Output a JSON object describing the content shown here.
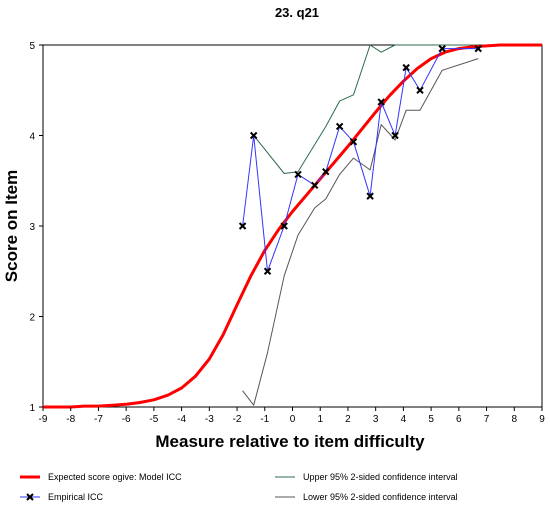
{
  "chart_data": {
    "type": "line",
    "title": "23. q21",
    "xlabel": "Measure relative to item difficulty",
    "ylabel": "Score on Item",
    "xlim": [
      -9,
      9
    ],
    "ylim": [
      1,
      5
    ],
    "xticks": [
      -9,
      -8,
      -7,
      -6,
      -5,
      -4,
      -3,
      -2,
      -1,
      0,
      1,
      2,
      3,
      4,
      5,
      6,
      7,
      8,
      9
    ],
    "yticks": [
      1,
      2,
      3,
      4,
      5
    ],
    "colors": {
      "model": "#ff0000",
      "empirical": "#3333ff",
      "empirical_marker": "#000000",
      "upper": "#2e6b4a",
      "lower": "#555555",
      "axis": "#000000"
    },
    "series": [
      {
        "name": "Expected score ogive: Model ICC",
        "kind": "model",
        "x": [
          -9,
          -8.5,
          -8,
          -7.5,
          -7,
          -6.5,
          -6,
          -5.5,
          -5,
          -4.5,
          -4,
          -3.5,
          -3,
          -2.5,
          -2,
          -1.5,
          -1,
          -0.5,
          0,
          0.5,
          1,
          1.5,
          2,
          2.5,
          3,
          3.5,
          4,
          4.5,
          5,
          5.5,
          6,
          6.5,
          7,
          7.5,
          8,
          8.5,
          9
        ],
        "y": [
          1.0,
          1.0,
          1.0,
          1.01,
          1.01,
          1.02,
          1.03,
          1.05,
          1.08,
          1.13,
          1.21,
          1.34,
          1.53,
          1.8,
          2.13,
          2.45,
          2.73,
          2.96,
          3.16,
          3.34,
          3.52,
          3.7,
          3.88,
          4.07,
          4.26,
          4.44,
          4.6,
          4.74,
          4.85,
          4.92,
          4.96,
          4.98,
          4.99,
          5.0,
          5.0,
          5.0,
          5.0
        ]
      },
      {
        "name": "Empirical ICC",
        "kind": "empirical",
        "x": [
          -1.8,
          -1.4,
          -0.9,
          -0.3,
          0.2,
          0.8,
          1.2,
          1.7,
          2.2,
          2.8,
          3.2,
          3.7,
          4.1,
          4.6,
          5.4,
          6.7
        ],
        "y": [
          3.0,
          4.0,
          2.5,
          3.0,
          3.57,
          3.45,
          3.6,
          4.1,
          3.93,
          3.33,
          4.37,
          4.0,
          4.75,
          4.5,
          4.96,
          4.96
        ]
      },
      {
        "name": "Upper 95% 2-sided confidence interval",
        "kind": "upper",
        "x": [
          -1.4,
          -0.3,
          0.2,
          0.8,
          1.2,
          1.7,
          2.2,
          2.8,
          3.2,
          3.7,
          4.1,
          4.6,
          5.4,
          6.7
        ],
        "y": [
          4.0,
          3.58,
          3.6,
          3.9,
          4.1,
          4.38,
          4.45,
          5.0,
          4.92,
          5.0,
          5.0,
          5.0,
          5.0,
          5.0
        ]
      },
      {
        "name": "Lower 95% 2-sided confidence interval",
        "kind": "lower",
        "x": [
          -1.8,
          -1.4,
          -0.9,
          -0.3,
          0.2,
          0.8,
          1.2,
          1.7,
          2.2,
          2.8,
          3.2,
          3.7,
          4.1,
          4.6,
          5.4,
          6.7
        ],
        "y": [
          1.18,
          1.02,
          1.6,
          2.45,
          2.9,
          3.2,
          3.3,
          3.57,
          3.75,
          3.62,
          4.12,
          3.95,
          4.28,
          4.28,
          4.72,
          4.85
        ]
      }
    ],
    "legend": {
      "placement": "bottom",
      "items": [
        {
          "label": "Expected score ogive: Model ICC",
          "kind": "model"
        },
        {
          "label": "Upper 95% 2-sided confidence interval",
          "kind": "upper"
        },
        {
          "label": "Empirical ICC",
          "kind": "empirical"
        },
        {
          "label": "Lower 95% 2-sided confidence interval",
          "kind": "lower"
        }
      ]
    },
    "grid": false
  }
}
